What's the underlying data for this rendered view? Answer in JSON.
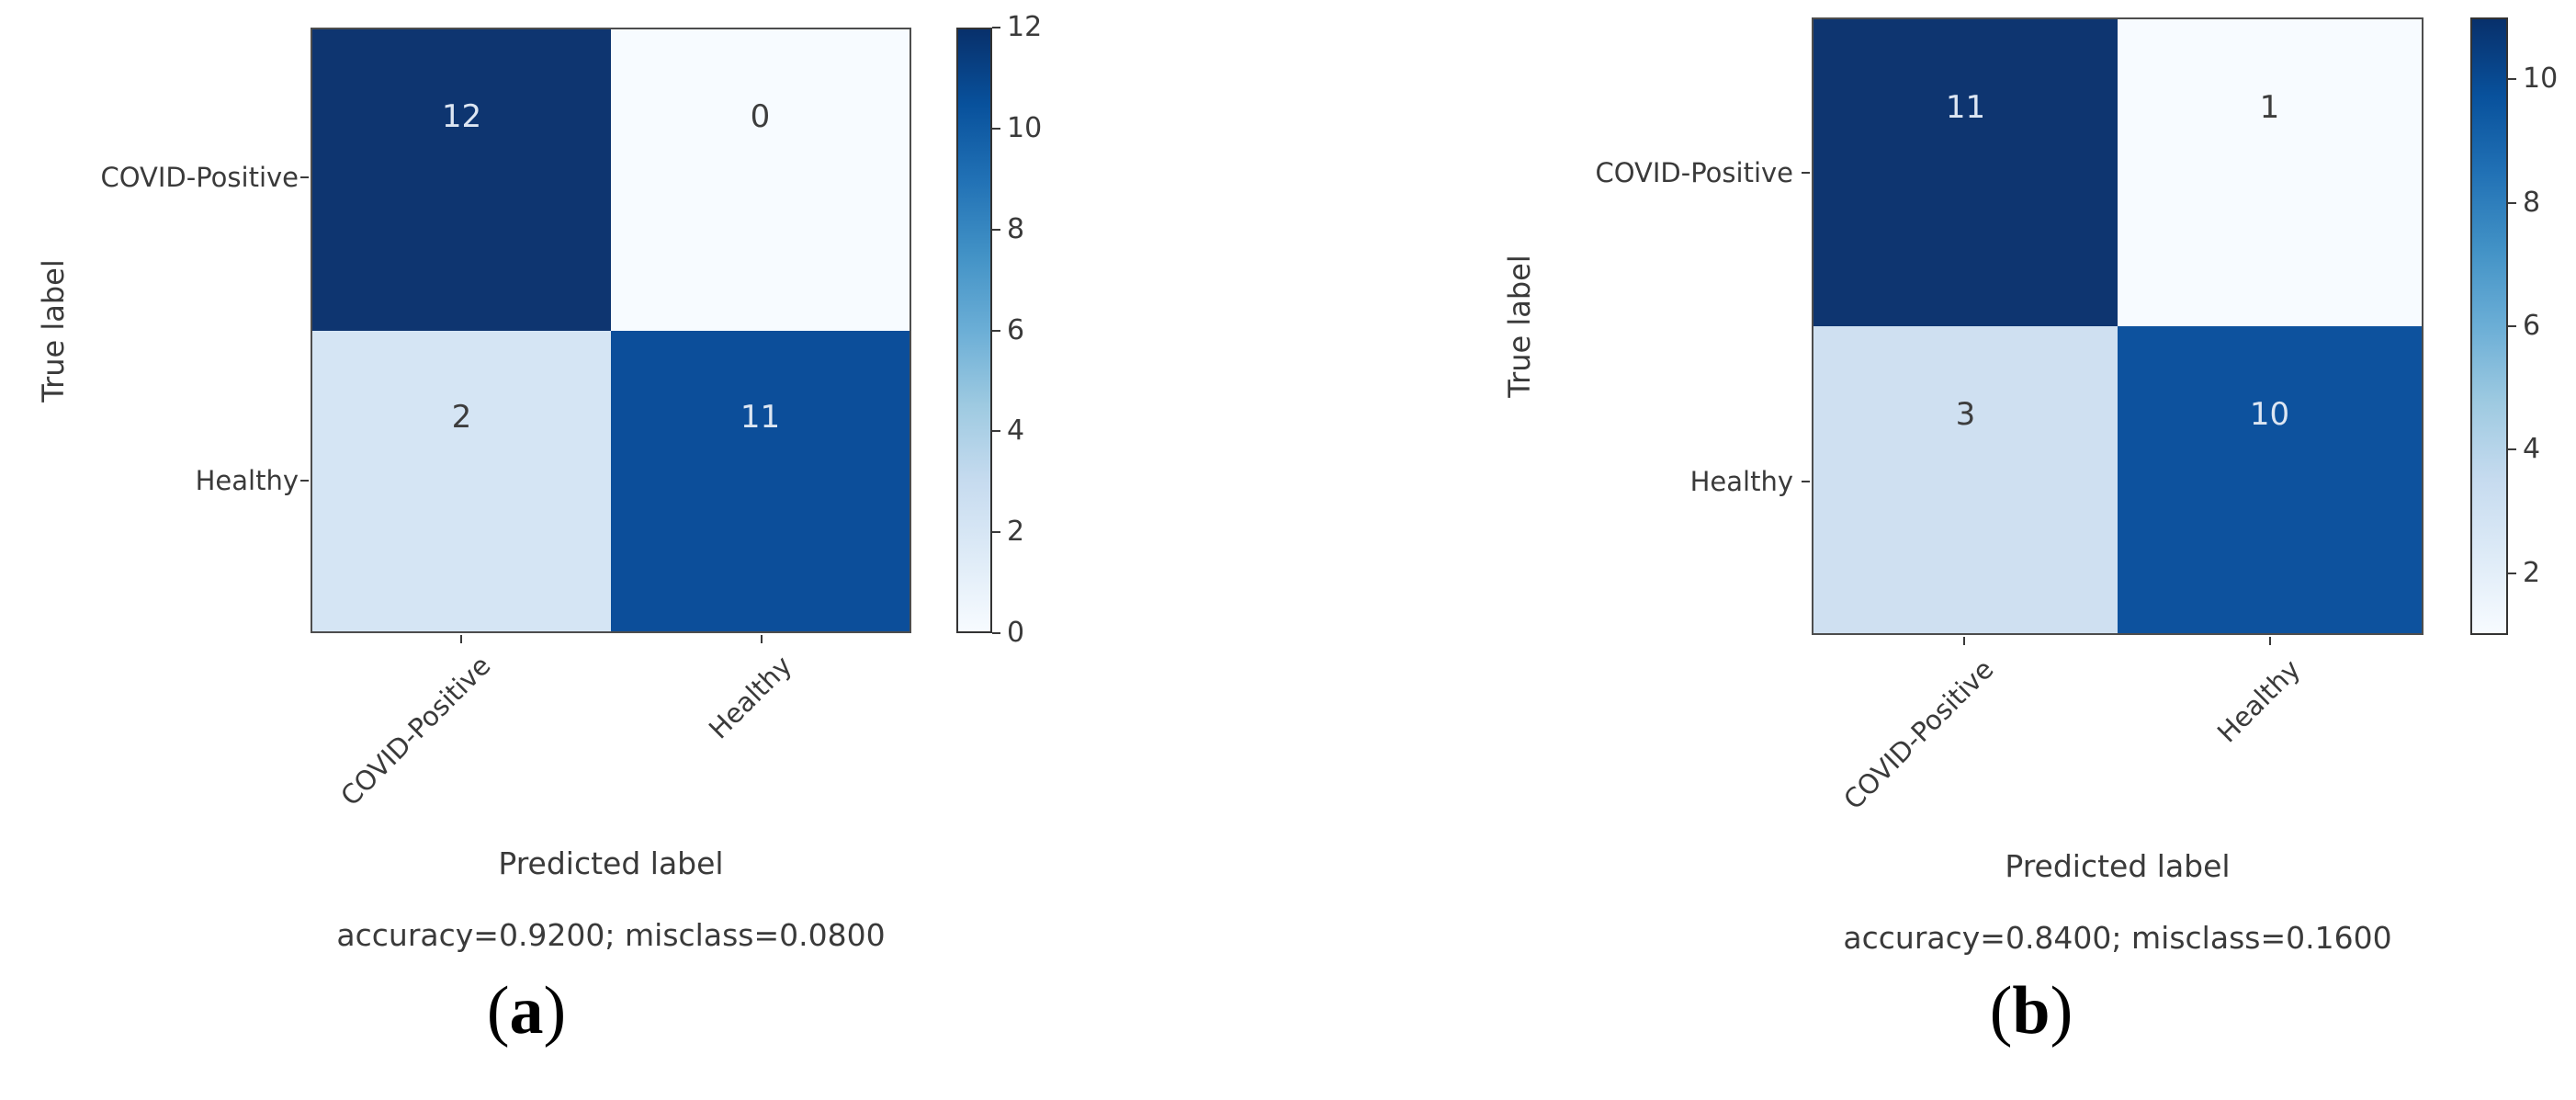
{
  "figure": {
    "background": "#ffffff",
    "text_color": "#3a3a3a",
    "colormap_name": "Blues",
    "colormap_min_hex": "#f7fbff",
    "colormap_max_hex": "#08306b"
  },
  "panels": [
    {
      "caption_open": "(",
      "caption_letter": "a",
      "caption_close": ")",
      "y_axis_label": "True label",
      "x_axis_label": "Predicted label",
      "stats_line": "accuracy=0.9200; misclass=0.0800",
      "row_labels": [
        "COVID-Positive",
        "Healthy"
      ],
      "col_labels": [
        "COVID-Positive",
        "Healthy"
      ],
      "cells": [
        {
          "value": "12",
          "bg": "#0e3570",
          "fg": "#dde6f2"
        },
        {
          "value": "0",
          "bg": "#f7fbff",
          "fg": "#3d3d3d"
        },
        {
          "value": "2",
          "bg": "#d5e5f4",
          "fg": "#3d3d3d"
        },
        {
          "value": "11",
          "bg": "#0c4e9a",
          "fg": "#dde6f2"
        }
      ],
      "colorbar_ticks": [
        {
          "label": "12",
          "pos": 0
        },
        {
          "label": "10",
          "pos": 16.67
        },
        {
          "label": "8",
          "pos": 33.33
        },
        {
          "label": "6",
          "pos": 50
        },
        {
          "label": "4",
          "pos": 66.67
        },
        {
          "label": "2",
          "pos": 83.33
        },
        {
          "label": "0",
          "pos": 100
        }
      ]
    },
    {
      "caption_open": "(",
      "caption_letter": "b",
      "caption_close": ")",
      "y_axis_label": "True label",
      "x_axis_label": "Predicted label",
      "stats_line": "accuracy=0.8400; misclass=0.1600",
      "row_labels": [
        "COVID-Positive",
        "Healthy"
      ],
      "col_labels": [
        "COVID-Positive",
        "Healthy"
      ],
      "cells": [
        {
          "value": "11",
          "bg": "#0e3570",
          "fg": "#dde6f2"
        },
        {
          "value": "1",
          "bg": "#f7fbff",
          "fg": "#3d3d3d"
        },
        {
          "value": "3",
          "bg": "#cfe0f1",
          "fg": "#3d3d3d"
        },
        {
          "value": "10",
          "bg": "#0d529e",
          "fg": "#dde6f2"
        }
      ],
      "colorbar_ticks": [
        {
          "label": "10",
          "pos": 10
        },
        {
          "label": "8",
          "pos": 30
        },
        {
          "label": "6",
          "pos": 50
        },
        {
          "label": "4",
          "pos": 70
        },
        {
          "label": "2",
          "pos": 90
        }
      ]
    }
  ],
  "chart_data": [
    {
      "type": "heatmap",
      "title": "(a)",
      "x_categories": [
        "COVID-Positive",
        "Healthy"
      ],
      "y_categories": [
        "COVID-Positive",
        "Healthy"
      ],
      "values": [
        [
          12,
          0
        ],
        [
          2,
          11
        ]
      ],
      "xlabel": "Predicted label",
      "ylabel": "True label",
      "annotation": "accuracy=0.9200; misclass=0.0800",
      "colormap": "Blues",
      "vmin": 0,
      "vmax": 12,
      "colorbar_ticks": [
        0,
        2,
        4,
        6,
        8,
        10,
        12
      ],
      "legend_position": "right-colorbar",
      "grid": false
    },
    {
      "type": "heatmap",
      "title": "(b)",
      "x_categories": [
        "COVID-Positive",
        "Healthy"
      ],
      "y_categories": [
        "COVID-Positive",
        "Healthy"
      ],
      "values": [
        [
          11,
          1
        ],
        [
          3,
          10
        ]
      ],
      "xlabel": "Predicted label",
      "ylabel": "True label",
      "annotation": "accuracy=0.8400; misclass=0.1600",
      "colormap": "Blues",
      "vmin": 1,
      "vmax": 11,
      "colorbar_ticks": [
        2,
        4,
        6,
        8,
        10
      ],
      "legend_position": "right-colorbar",
      "grid": false
    }
  ]
}
